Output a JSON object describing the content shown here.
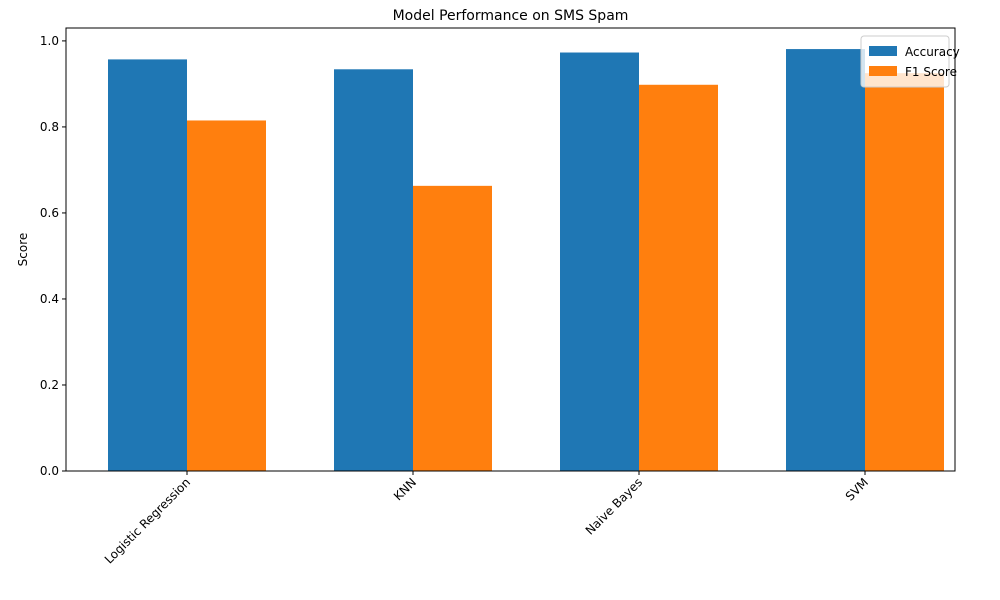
{
  "chart_data": {
    "type": "bar",
    "title": "Model Performance on SMS Spam",
    "xlabel": "",
    "ylabel": "Score",
    "categories": [
      "Logistic Regression",
      "KNN",
      "Naive Bayes",
      "SVM"
    ],
    "series": [
      {
        "name": "Accuracy",
        "color": "#1f77b4",
        "values": [
          0.957,
          0.934,
          0.973,
          0.981
        ]
      },
      {
        "name": "F1 Score",
        "color": "#ff7f0e",
        "values": [
          0.815,
          0.663,
          0.898,
          0.925
        ]
      }
    ],
    "ylim": [
      0,
      1.03
    ],
    "yticks": [
      "0.0",
      "0.2",
      "0.4",
      "0.6",
      "0.8",
      "1.0"
    ],
    "grid": false,
    "legend_position": "top-right",
    "xtick_rotation": 45
  }
}
